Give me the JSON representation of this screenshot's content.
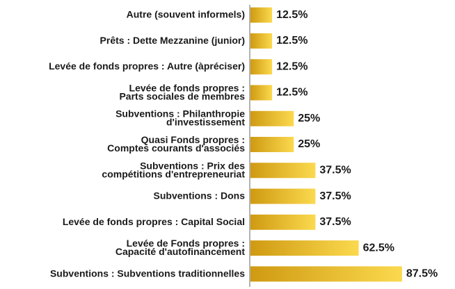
{
  "chart_data": {
    "type": "bar",
    "orientation": "horizontal",
    "categories": [
      [
        "Autre (souvent informels)"
      ],
      [
        "Prêts : Dette Mezzanine (junior)"
      ],
      [
        "Levée de fonds propres : Autre (àpréciser)"
      ],
      [
        "Levée de fonds propres :",
        "Parts sociales de membres"
      ],
      [
        "Subventions : Philanthropie",
        "d'investissement"
      ],
      [
        "Quasi Fonds propres :",
        "Comptes courants d'associés"
      ],
      [
        "Subventions : Prix des",
        "compétitions d'entrepreneuriat"
      ],
      [
        "Subventions : Dons"
      ],
      [
        "Levée de fonds propres : Capital Social"
      ],
      [
        "Levée de Fonds propres :",
        "Capacité d'autofinancement"
      ],
      [
        "Subventions : Subventions traditionnelles"
      ]
    ],
    "values": [
      12.5,
      12.5,
      12.5,
      12.5,
      25,
      25,
      37.5,
      37.5,
      37.5,
      62.5,
      87.5
    ],
    "value_labels": [
      "12.5%",
      "12.5%",
      "12.5%",
      "12.5%",
      "25%",
      "25%",
      "37.5%",
      "37.5%",
      "37.5%",
      "62.5%",
      "87.5%"
    ],
    "color": [
      "#cf9a12",
      "#fbd94e"
    ],
    "xlim": [
      0,
      100
    ]
  }
}
